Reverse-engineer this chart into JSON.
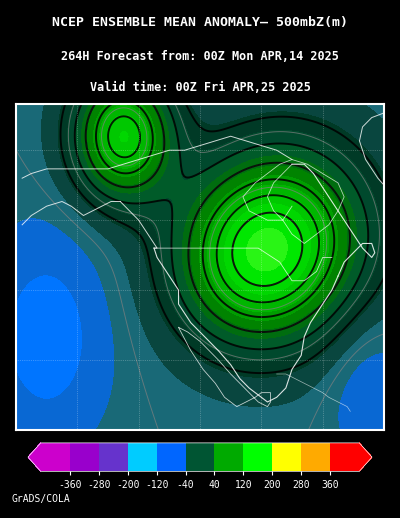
{
  "title_line1": "NCEP ENSEMBLE MEAN ANOMALY– 500mbZ(m)",
  "title_line2": "264H Forecast from: 00Z Mon APR,14 2025",
  "title_line3": "Valid time: 00Z Fri APR,25 2025",
  "background_color": "#000000",
  "map_bg_color": "#1a6b7a",
  "colorbar_bounds": [
    -400,
    -360,
    -280,
    -200,
    -120,
    -40,
    40,
    120,
    200,
    280,
    360,
    400
  ],
  "colorbar_colors": [
    "#cc00cc",
    "#9900cc",
    "#6633cc",
    "#3399ff",
    "#00ccff",
    "#0066ff",
    "#003388",
    "#005533",
    "#00aa00",
    "#00ff00",
    "#aaff00",
    "#ffff00",
    "#ffaa00",
    "#ff6600",
    "#ff0000"
  ],
  "colorbar_values": [
    -360,
    -280,
    -200,
    -120,
    -40,
    40,
    120,
    200,
    280,
    360
  ],
  "colorbar_tick_labels": [
    "-360",
    "-280",
    "-200",
    "-120",
    "-40",
    "40",
    "120",
    "200",
    "280",
    "360"
  ],
  "credit": "GrADS/COLA",
  "border_color": "#ffffff",
  "title_color": "#ffffff",
  "font_size_title": 9.5,
  "font_size_sub": 8.5,
  "font_size_credit": 7
}
